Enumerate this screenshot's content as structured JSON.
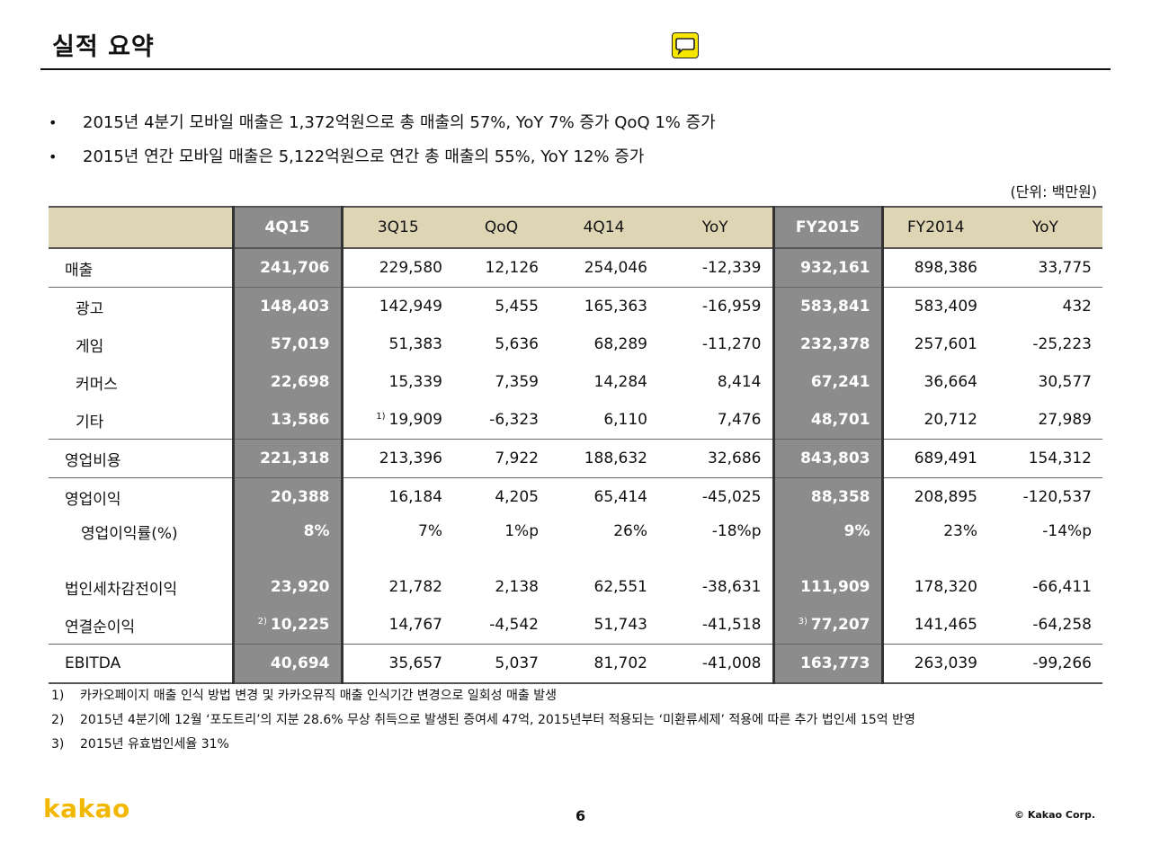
{
  "title": "실적 요약",
  "bullets": [
    "2015년 4분기 모바일 매출은 1,372억원으로 총 매출의 57%,  YoY 7% 증가 QoQ 1% 증가",
    "2015년 연간 모바일 매출은 5,122억원으로 연간 총 매출의 55%,  YoY 12% 증가"
  ],
  "unit": "(단위: 백만원)",
  "table": {
    "headers": [
      "",
      "4Q15",
      "3Q15",
      "QoQ",
      "4Q14",
      "YoY",
      "FY2015",
      "FY2014",
      "YoY"
    ],
    "rows": [
      {
        "label": "매출",
        "cells": [
          "241,706",
          "229,580",
          "12,126",
          "254,046",
          "-12,339",
          "932,161",
          "898,386",
          "33,775"
        ]
      },
      {
        "label": "광고",
        "cells": [
          "148,403",
          "142,949",
          "5,455",
          "165,363",
          "-16,959",
          "583,841",
          "583,409",
          "432"
        ]
      },
      {
        "label": "게임",
        "cells": [
          "57,019",
          "51,383",
          "5,636",
          "68,289",
          "-11,270",
          "232,378",
          "257,601",
          "-25,223"
        ]
      },
      {
        "label": "커머스",
        "cells": [
          "22,698",
          "15,339",
          "7,359",
          "14,284",
          "8,414",
          "67,241",
          "36,664",
          "30,577"
        ]
      },
      {
        "label": "기타",
        "cells": [
          "13,586",
          "19,909",
          "-6,323",
          "6,110",
          "7,476",
          "48,701",
          "20,712",
          "27,989"
        ]
      },
      {
        "label": "영업비용",
        "cells": [
          "221,318",
          "213,396",
          "7,922",
          "188,632",
          "32,686",
          "843,803",
          "689,491",
          "154,312"
        ]
      },
      {
        "label": "영업이익",
        "cells": [
          "20,388",
          "16,184",
          "4,205",
          "65,414",
          "-45,025",
          "88,358",
          "208,895",
          "-120,537"
        ]
      },
      {
        "label": "영업이익률(%)",
        "cells": [
          "8%",
          "7%",
          "1%p",
          "26%",
          "-18%p",
          "9%",
          "23%",
          "-14%p"
        ]
      },
      {
        "label": "법인세차감전이익",
        "cells": [
          "23,920",
          "21,782",
          "2,138",
          "62,551",
          "-38,631",
          "111,909",
          "178,320",
          "-66,411"
        ]
      },
      {
        "label": "연결순이익",
        "cells": [
          "10,225",
          "14,767",
          "-4,542",
          "51,743",
          "-41,518",
          "77,207",
          "141,465",
          "-64,258"
        ]
      },
      {
        "label": "EBITDA",
        "cells": [
          "40,694",
          "35,657",
          "5,037",
          "81,702",
          "-41,008",
          "163,773",
          "263,039",
          "-99,266"
        ]
      }
    ],
    "footnote_marks": {
      "etc_3q15": "1)",
      "net_4q15": "2)",
      "net_fy2015": "3)"
    }
  },
  "notes": [
    {
      "num": "1)",
      "text": "카카오페이지 매출 인식 방법 변경 및 카카오뮤직 매출 인식기간 변경으로 일회성 매출 발생"
    },
    {
      "num": "2)",
      "text": "2015년 4분기에 12월 ‘포도트리’의 지분 28.6% 무상 취득으로 발생된 증여세 47억, 2015년부터 적용되는 ‘미환류세제’ 적용에 따른 추가 법인세 15억 반영"
    },
    {
      "num": "3)",
      "text": "2015년 유효법인세율 31%"
    }
  ],
  "logo": "kakao",
  "page_number": "6",
  "copyright": "© Kakao Corp.",
  "icon": "chat-bubble-icon",
  "colors": {
    "header_bg": "#ddd5b4",
    "highlight_col": "#8c8c8c",
    "brand_yellow": "#f7e600"
  }
}
